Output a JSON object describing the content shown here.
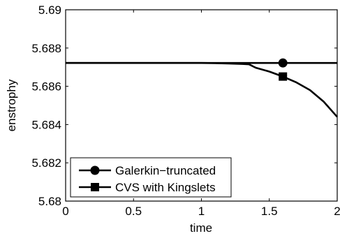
{
  "chart_data": {
    "type": "line",
    "title": "",
    "xlabel": "time",
    "ylabel": "enstrophy",
    "xlim": [
      0,
      2
    ],
    "ylim": [
      5.68,
      5.69
    ],
    "xticks": [
      {
        "value": 0,
        "label": "0"
      },
      {
        "value": 0.5,
        "label": "0.5"
      },
      {
        "value": 1,
        "label": "1"
      },
      {
        "value": 1.5,
        "label": "1.5"
      },
      {
        "value": 2,
        "label": "2"
      }
    ],
    "yticks": [
      {
        "value": 5.68,
        "label": "5.68"
      },
      {
        "value": 5.682,
        "label": "5.682"
      },
      {
        "value": 5.684,
        "label": "5.684"
      },
      {
        "value": 5.686,
        "label": "5.686"
      },
      {
        "value": 5.688,
        "label": "5.688"
      },
      {
        "value": 5.69,
        "label": "5.69"
      }
    ],
    "grid": false,
    "legend_position": "bottom-left",
    "line_color": "#000000",
    "series": [
      {
        "name": "Galerkin−truncated",
        "marker": "circle",
        "x": [
          0,
          0.5,
          1.0,
          1.5,
          2.0
        ],
        "y": [
          5.68722,
          5.68722,
          5.68722,
          5.68722,
          5.68722
        ],
        "marker_points": [
          {
            "x": 1.6,
            "y": 5.68722
          }
        ]
      },
      {
        "name": "CVS with Kingslets",
        "marker": "square",
        "x": [
          0,
          0.5,
          1.0,
          1.1,
          1.2,
          1.3,
          1.35,
          1.4,
          1.5,
          1.6,
          1.7,
          1.8,
          1.9,
          2.0
        ],
        "y": [
          5.68722,
          5.68722,
          5.68722,
          5.68721,
          5.68719,
          5.68717,
          5.68715,
          5.68697,
          5.68677,
          5.68651,
          5.6862,
          5.6858,
          5.6852,
          5.6844
        ],
        "marker_points": [
          {
            "x": 1.6,
            "y": 5.68651
          }
        ]
      }
    ]
  }
}
